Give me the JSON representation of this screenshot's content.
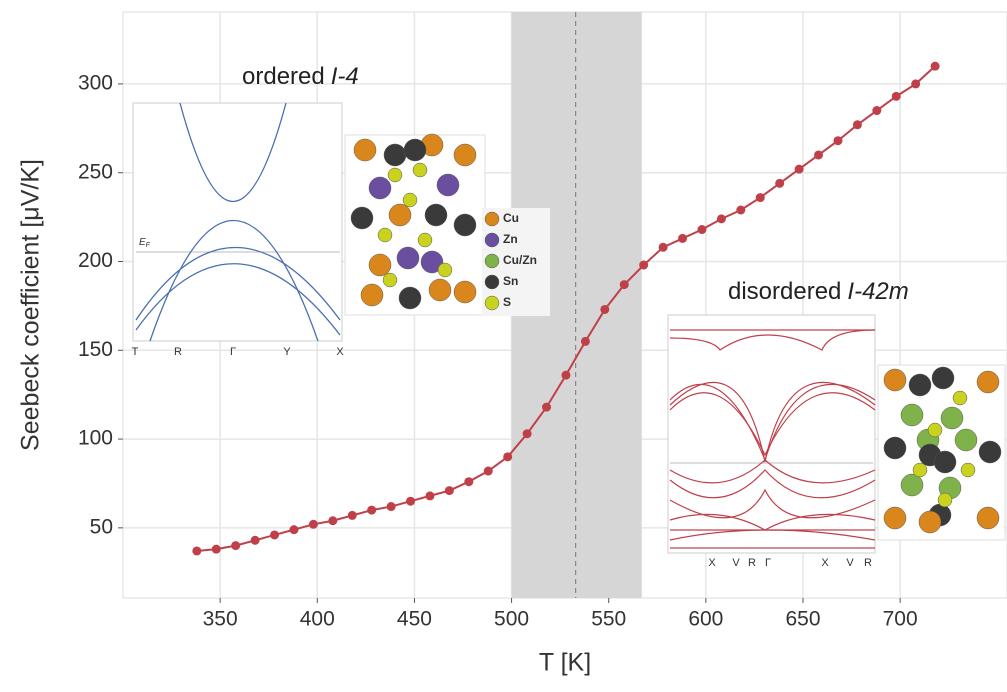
{
  "chart_data": {
    "type": "line",
    "x_label": "T [K]",
    "y_label": "Seebeck coefficient [μV/K]",
    "x": [
      338,
      348,
      358,
      368,
      378,
      388,
      398,
      408,
      418,
      428,
      438,
      448,
      458,
      468,
      478,
      488,
      498,
      508,
      518,
      528,
      538,
      548,
      558,
      568,
      578,
      588,
      598,
      608,
      618,
      628,
      638,
      648,
      658,
      668,
      678,
      688,
      698,
      708,
      718
    ],
    "series": [
      {
        "color": "#c0404a",
        "values": [
          37,
          38,
          40,
          43,
          46,
          49,
          52,
          54,
          57,
          60,
          62,
          65,
          68,
          71,
          76,
          82,
          90,
          103,
          118,
          136,
          155,
          173,
          187,
          198,
          208,
          213,
          218,
          224,
          229,
          236,
          244,
          252,
          260,
          268,
          277,
          285,
          293,
          300,
          310
        ]
      }
    ],
    "xlim": [
      300,
      755
    ],
    "ylim": [
      10.5,
      340.5
    ],
    "xticks": [
      350,
      400,
      450,
      500,
      550,
      600,
      650,
      700
    ],
    "yticks": [
      50,
      100,
      150,
      200,
      250,
      300
    ],
    "grid": true,
    "shaded_range": [
      500,
      567
    ],
    "dashed_line": 533,
    "insets": {
      "ordered": {
        "text": "ordered",
        "formula": "I-4",
        "fermi": {
          "main": "E",
          "sub": "F"
        },
        "kpoints": [
          "T",
          "R",
          "Γ",
          "Y",
          "X"
        ]
      },
      "disordered": {
        "text": "disordered",
        "formula": "I-42m",
        "kpoints": [
          "X",
          "V",
          "R",
          "Γ",
          "X",
          "V",
          "R"
        ]
      },
      "legend": [
        {
          "name": "Cu",
          "color": "#d9861c"
        },
        {
          "name": "Zn",
          "color": "#6a4fa0"
        },
        {
          "name": "Cu/Zn",
          "color": "#7fb24a"
        },
        {
          "name": "Sn",
          "color": "#3a3a3a"
        },
        {
          "name": "S",
          "color": "#c9d21e"
        }
      ]
    }
  }
}
